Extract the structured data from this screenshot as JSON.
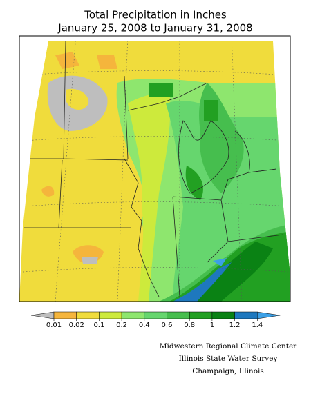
{
  "header": {
    "title": "Total Precipitation in Inches",
    "subtitle": "January 25, 2008 to January 31, 2008"
  },
  "legend": {
    "colors": [
      "#bebebe",
      "#f5b53c",
      "#f0dc3c",
      "#cdea3c",
      "#8ee66e",
      "#66d66e",
      "#46be4e",
      "#22a022",
      "#0a8214",
      "#1e78be",
      "#3ca0e6"
    ],
    "labels": [
      0.01,
      0.02,
      0.1,
      0.2,
      0.4,
      0.6,
      0.8,
      1,
      1.2,
      1.4
    ]
  },
  "credits": [
    "Midwestern Regional Climate Center",
    "Illinois State Water Survey",
    "Champaign, Illinois"
  ]
}
